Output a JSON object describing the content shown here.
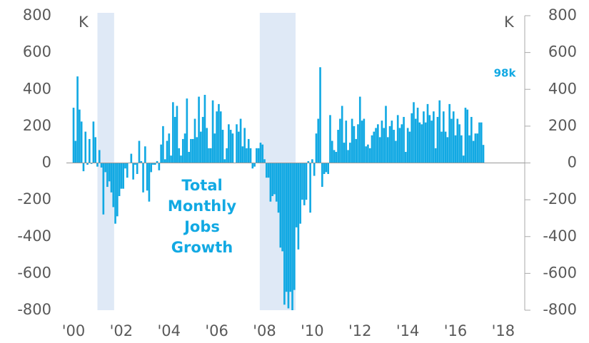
{
  "chart_data": {
    "type": "bar",
    "title": "Total Monthly Jobs Growth",
    "y_unit": "K",
    "y2_unit": "K",
    "annotation": "98k",
    "color": "#12a9e3",
    "shade_color": "#dfe9f6",
    "recessions": [
      [
        2001.0,
        2001.7
      ],
      [
        2007.8,
        2009.3
      ]
    ],
    "x_start": 2000,
    "x_step": 0.08333,
    "xlim": [
      1999.7,
      2018.9
    ],
    "xticks": [
      {
        "value": 2000,
        "label": "'00"
      },
      {
        "value": 2002,
        "label": "'02"
      },
      {
        "value": 2004,
        "label": "'04"
      },
      {
        "value": 2006,
        "label": "'06"
      },
      {
        "value": 2008,
        "label": "'08"
      },
      {
        "value": 2010,
        "label": "'10"
      },
      {
        "value": 2012,
        "label": "'12"
      },
      {
        "value": 2014,
        "label": "'14"
      },
      {
        "value": 2016,
        "label": "'16"
      },
      {
        "value": 2018,
        "label": "'18"
      }
    ],
    "ylim": [
      -800,
      800
    ],
    "yticks": [
      -800,
      -600,
      -400,
      -200,
      0,
      200,
      400,
      600,
      800
    ],
    "y2lim": [
      -800,
      800
    ],
    "y2ticks": [
      -800,
      -600,
      -400,
      -200,
      0,
      200,
      400,
      600,
      800
    ],
    "values": [
      300,
      120,
      470,
      290,
      225,
      -45,
      170,
      -10,
      130,
      -5,
      225,
      140,
      -20,
      70,
      -25,
      -280,
      -50,
      -130,
      -100,
      -160,
      -240,
      -330,
      -290,
      -180,
      -140,
      -140,
      -30,
      -80,
      0,
      50,
      -90,
      -10,
      -60,
      120,
      10,
      -160,
      90,
      -150,
      -210,
      -50,
      -10,
      -10,
      10,
      -40,
      100,
      200,
      20,
      120,
      160,
      40,
      330,
      250,
      310,
      80,
      40,
      130,
      160,
      350,
      60,
      130,
      130,
      240,
      140,
      360,
      170,
      250,
      370,
      190,
      80,
      80,
      340,
      160,
      280,
      320,
      280,
      180,
      20,
      80,
      210,
      180,
      160,
      0,
      210,
      170,
      240,
      90,
      190,
      80,
      130,
      80,
      -30,
      -20,
      80,
      80,
      110,
      100,
      20,
      -80,
      -80,
      -210,
      -180,
      -170,
      -210,
      -270,
      -460,
      -480,
      -770,
      -700,
      -790,
      -700,
      -800,
      -690,
      -350,
      -470,
      -330,
      -200,
      -230,
      -200,
      10,
      -270,
      20,
      -70,
      160,
      240,
      520,
      -130,
      -60,
      -50,
      -60,
      260,
      120,
      70,
      60,
      180,
      240,
      310,
      110,
      230,
      70,
      110,
      240,
      200,
      130,
      210,
      360,
      230,
      240,
      90,
      100,
      80,
      150,
      170,
      190,
      210,
      140,
      230,
      190,
      310,
      140,
      200,
      230,
      180,
      120,
      260,
      190,
      210,
      250,
      60,
      190,
      170,
      270,
      330,
      240,
      300,
      220,
      210,
      280,
      220,
      320,
      260,
      230,
      280,
      80,
      250,
      340,
      170,
      280,
      170,
      140,
      320,
      240,
      280,
      150,
      240,
      210,
      150,
      40,
      300,
      290,
      150,
      250,
      120,
      160,
      160,
      220,
      220,
      98
    ]
  }
}
